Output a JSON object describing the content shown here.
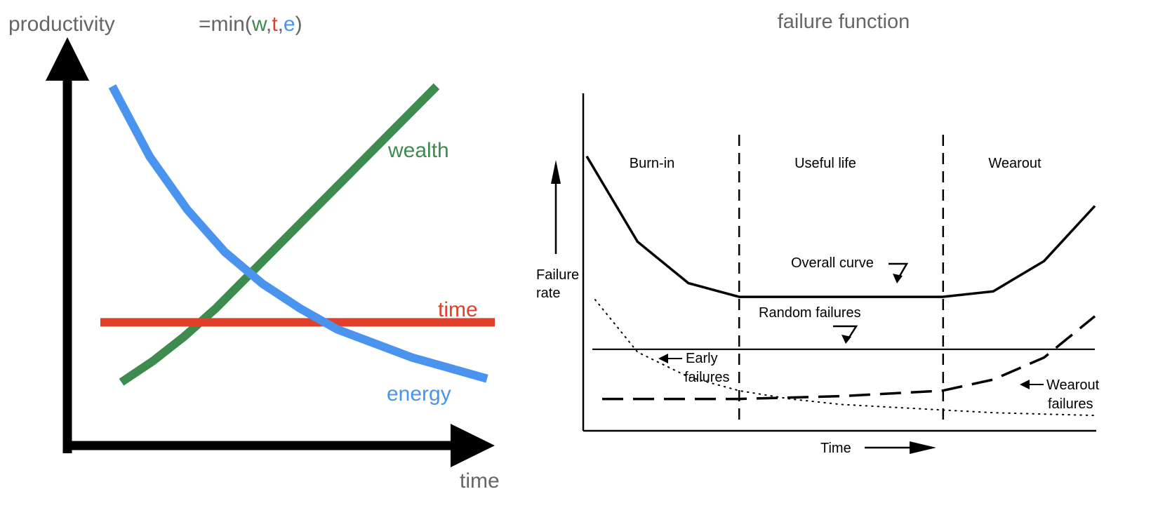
{
  "colors": {
    "wealth": "#3d8b4f",
    "time": "#e0402a",
    "energy": "#4a94f0",
    "axis": "#000000",
    "label_gray": "#666666"
  },
  "chart_data": [
    {
      "type": "line",
      "title": "",
      "formula": {
        "prefix": "=min(",
        "w": "w",
        "sep1": ",",
        "t": "t",
        "sep2": ",",
        "e": "e",
        "suffix": ")"
      },
      "xlabel": "time",
      "ylabel": "productivity",
      "axis_ticks": false,
      "grid": false,
      "legend": "labels next to lines",
      "x": [
        0,
        1,
        2,
        3,
        4,
        5,
        6,
        7,
        8,
        9,
        10
      ],
      "xlim": [
        0,
        10
      ],
      "ylim": [
        0,
        10
      ],
      "series": [
        {
          "name": "wealth",
          "color_key": "wealth",
          "values": [
            1.5,
            2.1,
            2.8,
            3.6,
            4.5,
            5.4,
            6.3,
            7.2,
            8.1,
            9.0,
            9.9
          ]
        },
        {
          "name": "time",
          "color_key": "time",
          "values": [
            3.2,
            3.2,
            3.2,
            3.2,
            3.2,
            3.2,
            3.2,
            3.2,
            3.2,
            3.2,
            3.2
          ]
        },
        {
          "name": "energy",
          "color_key": "energy",
          "values": [
            9.9,
            7.9,
            6.4,
            5.2,
            4.3,
            3.6,
            3.0,
            2.6,
            2.2,
            1.9,
            1.6
          ]
        }
      ]
    },
    {
      "type": "line",
      "title": "failure function",
      "xlabel": "Time",
      "ylabel": "Failure rate",
      "axis_ticks": false,
      "grid": false,
      "regions": [
        "Burn-in",
        "Useful life",
        "Wearout"
      ],
      "region_boundaries": [
        3,
        7
      ],
      "x": [
        0,
        1,
        2,
        3,
        4,
        5,
        6,
        7,
        8,
        9,
        10
      ],
      "xlim": [
        0,
        10
      ],
      "ylim": [
        0,
        10
      ],
      "series": [
        {
          "name": "Overall curve",
          "style": "solid-bold",
          "values": [
            9.6,
            6.5,
            5.0,
            4.5,
            4.5,
            4.5,
            4.5,
            4.5,
            4.7,
            5.8,
            7.8
          ]
        },
        {
          "name": "Random failures",
          "style": "solid-thin",
          "values": [
            2.6,
            2.6,
            2.6,
            2.6,
            2.6,
            2.6,
            2.6,
            2.6,
            2.6,
            2.6,
            2.6
          ]
        },
        {
          "name": "Early failures",
          "style": "dotted",
          "values": [
            4.4,
            2.5,
            1.6,
            1.1,
            0.8,
            0.6,
            0.5,
            0.4,
            0.3,
            0.25,
            0.2
          ]
        },
        {
          "name": "Wearout failures",
          "style": "dashed",
          "values": [
            0.8,
            0.8,
            0.8,
            0.8,
            0.85,
            0.9,
            1.0,
            1.1,
            1.5,
            2.3,
            3.8
          ]
        }
      ],
      "annotations": {
        "overall_curve": "Overall curve",
        "random_failures": "Random failures",
        "early_1": "Early",
        "early_2": "failures",
        "wearout_1": "Wearout",
        "wearout_2": "failures",
        "ylabel_1": "Failure",
        "ylabel_2": "rate"
      }
    }
  ]
}
